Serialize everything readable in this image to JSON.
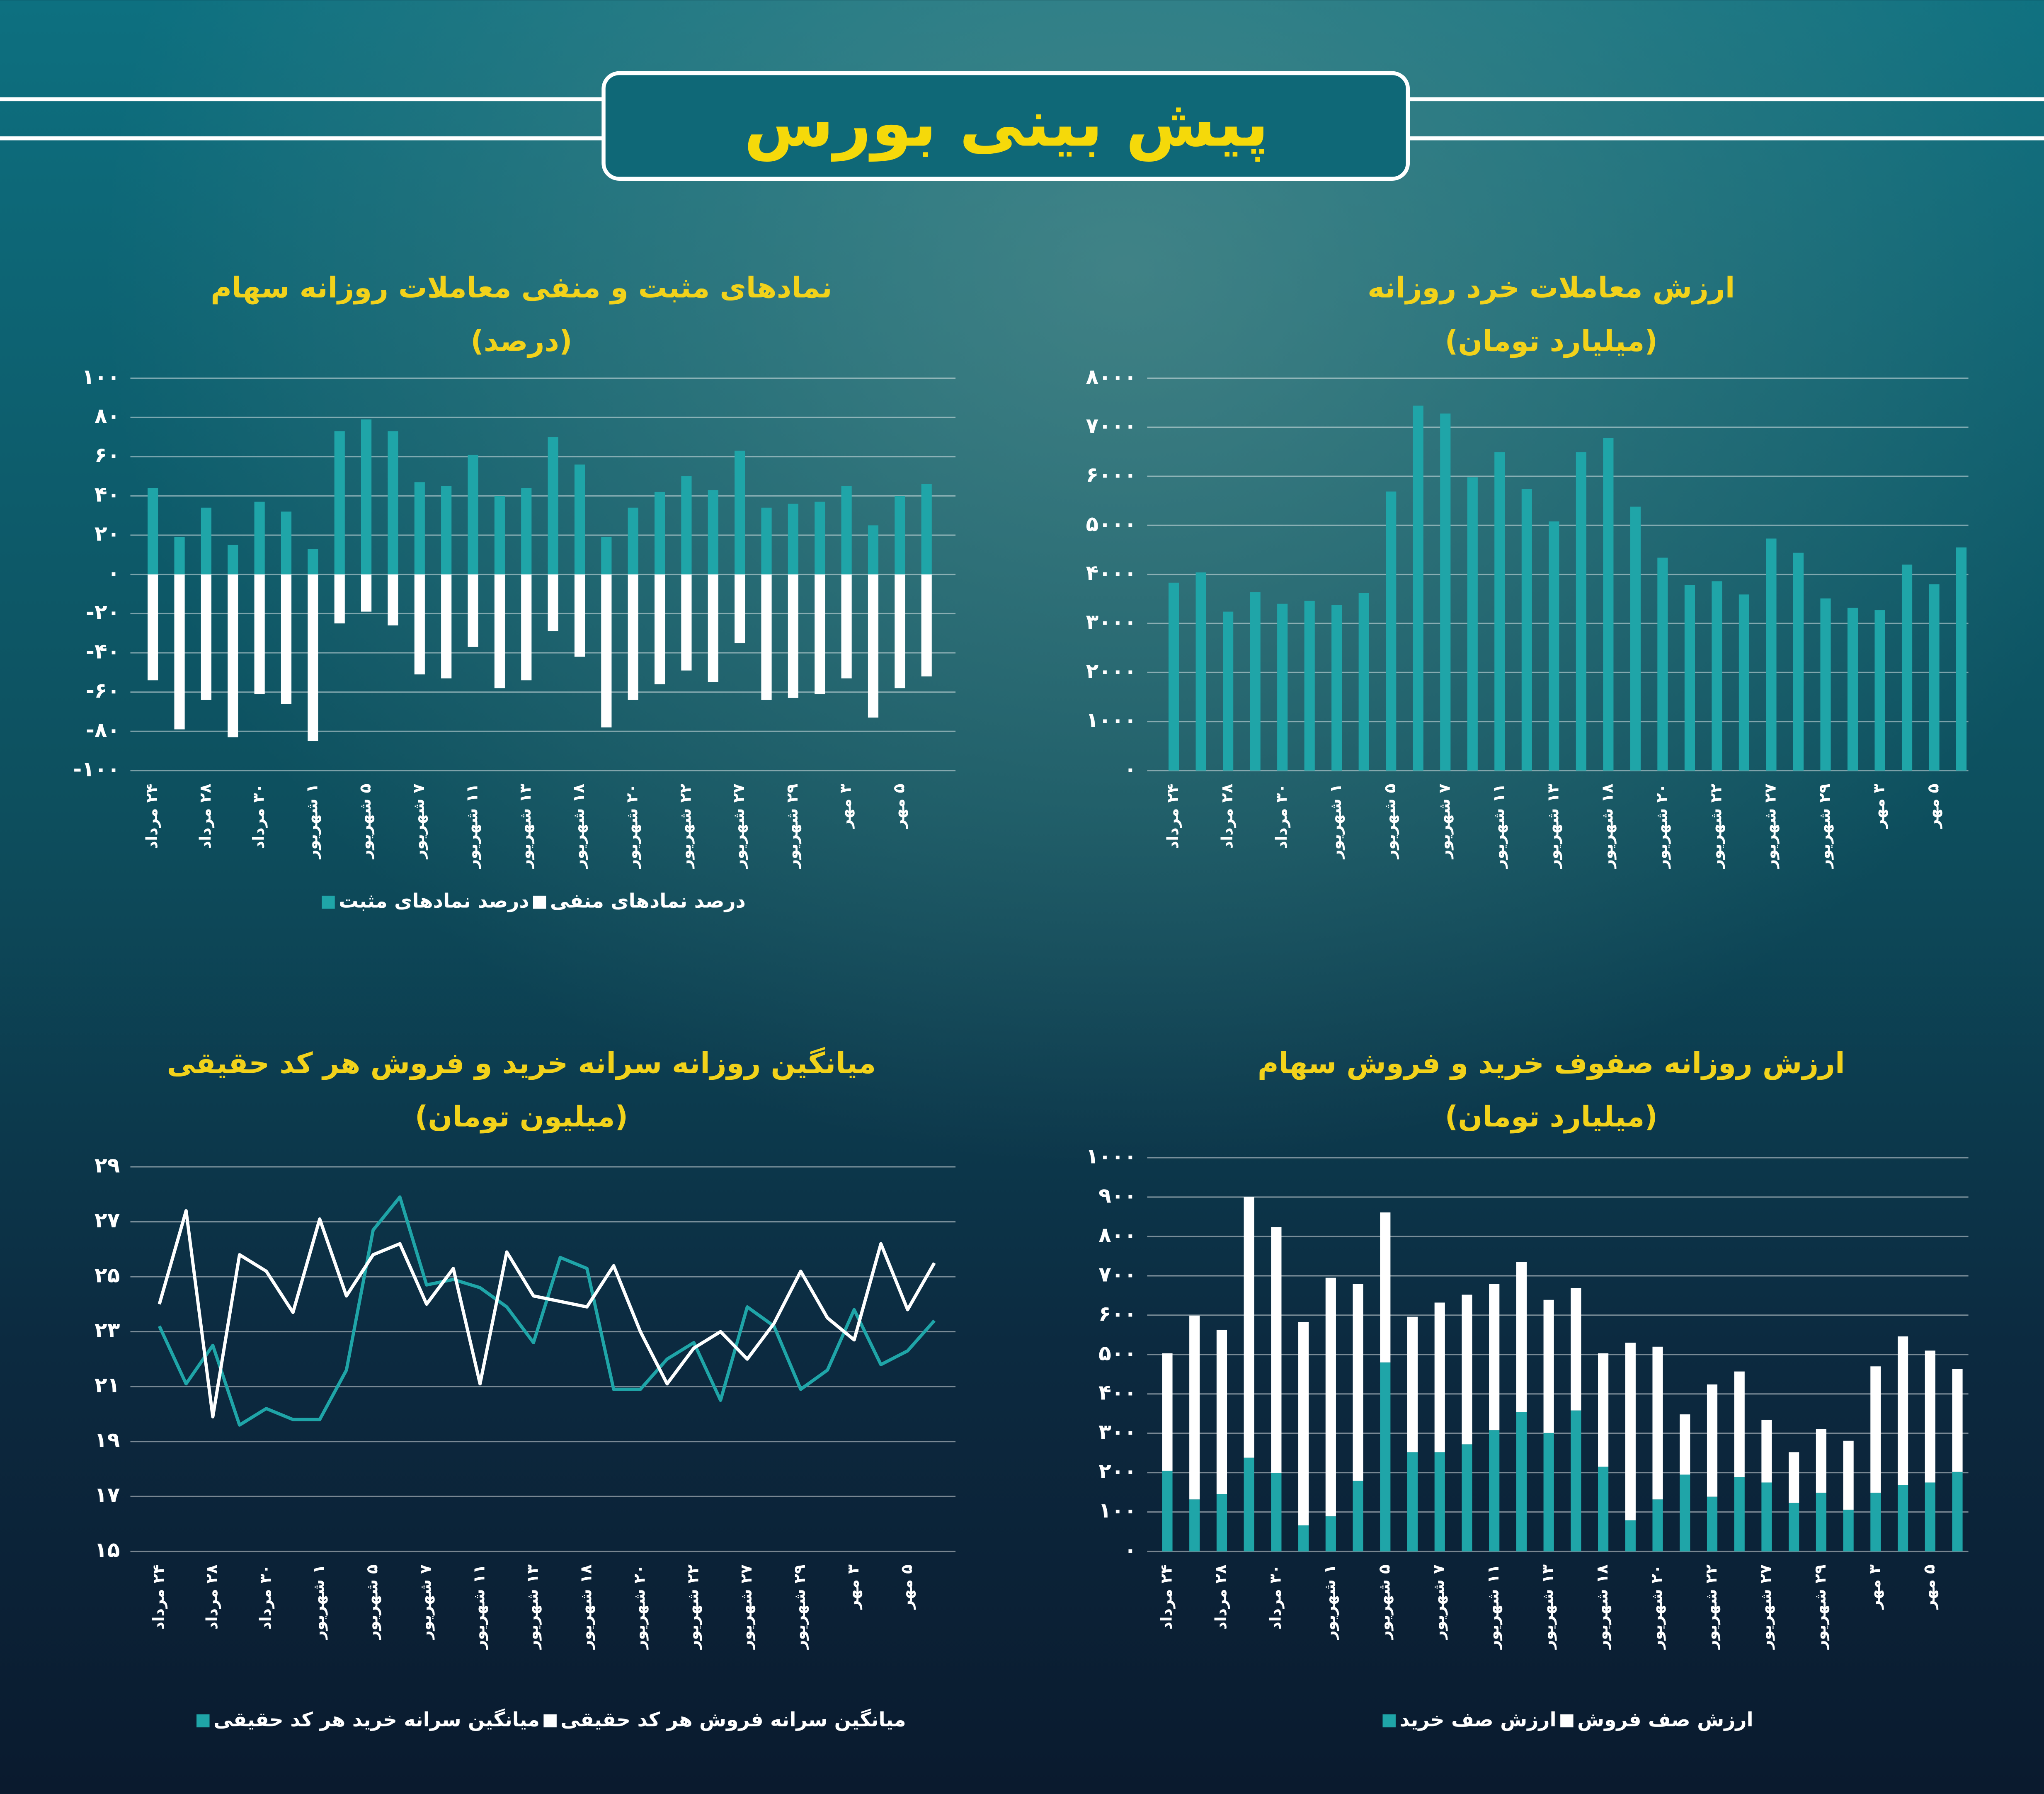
{
  "title": "پیش بینی بورس",
  "chart_data": [
    {
      "type": "bar",
      "title": "نمادهای مثبت و منفی معاملات روزانه سهام",
      "subtitle": "(درصد)",
      "categories": [
        "۲۴ مرداد",
        null,
        "۲۸ مرداد",
        null,
        "۳۰ مرداد",
        null,
        "۱ شهریور",
        null,
        "۵ شهریور",
        null,
        "۷ شهریور",
        null,
        "۱۱ شهریور",
        null,
        "۱۳ شهریور",
        null,
        "۱۸ شهریور",
        null,
        "۲۰ شهریور",
        null,
        "۲۲ شهریور",
        null,
        "۲۷ شهریور",
        null,
        "۲۹ شهریور",
        null,
        "۳ مهر",
        null,
        "۵ مهر",
        null
      ],
      "series": [
        {
          "name": "درصد نمادهای مثبت",
          "color": "#1fa5a8",
          "values": [
            44,
            19,
            34,
            15,
            37,
            32,
            13,
            73,
            79,
            73,
            47,
            45,
            61,
            40,
            44,
            70,
            56,
            19,
            34,
            42,
            50,
            43,
            63,
            34,
            36,
            37,
            45,
            25,
            40,
            46
          ]
        },
        {
          "name": "درصد نمادهای منفی",
          "color": "#ffffff",
          "values": [
            -54,
            -79,
            -64,
            -83,
            -61,
            -66,
            -85,
            -25,
            -19,
            -26,
            -51,
            -53,
            -37,
            -58,
            -54,
            -29,
            -42,
            -78,
            -64,
            -56,
            -49,
            -55,
            -35,
            -64,
            -63,
            -61,
            -53,
            -73,
            -58,
            -52
          ]
        }
      ],
      "ylim": [
        -100,
        100
      ],
      "yticks": [
        {
          "value": -100,
          "label": "-۱۰۰"
        },
        {
          "value": -80,
          "label": "-۸۰"
        },
        {
          "value": -60,
          "label": "-۶۰"
        },
        {
          "value": -40,
          "label": "-۴۰"
        },
        {
          "value": -20,
          "label": "-۲۰"
        },
        {
          "value": 0,
          "label": "۰"
        },
        {
          "value": 20,
          "label": "۲۰"
        },
        {
          "value": 40,
          "label": "۴۰"
        },
        {
          "value": 60,
          "label": "۶۰"
        },
        {
          "value": 80,
          "label": "۸۰"
        },
        {
          "value": 100,
          "label": "۱۰۰"
        }
      ],
      "grid": true
    },
    {
      "type": "bar",
      "title": "ارزش معاملات خرد روزانه",
      "subtitle": "(میلیارد تومان)",
      "categories": [
        "۲۴ مرداد",
        null,
        "۲۸ مرداد",
        null,
        "۳۰ مرداد",
        null,
        "۱ شهریور",
        null,
        "۵ شهریور",
        null,
        "۷ شهریور",
        null,
        "۱۱ شهریور",
        null,
        "۱۳ شهریور",
        null,
        "۱۸ شهریور",
        null,
        "۲۰ شهریور",
        null,
        "۲۲ شهریور",
        null,
        "۲۷ شهریور",
        null,
        "۲۹ شهریور",
        null,
        "۳ مهر",
        null,
        "۵ مهر",
        null
      ],
      "values": [
        3830,
        4040,
        3240,
        3640,
        3400,
        3460,
        3380,
        3620,
        5690,
        7440,
        7280,
        5980,
        6490,
        5740,
        5080,
        6490,
        6780,
        5380,
        4340,
        3780,
        3860,
        3590,
        4730,
        4440,
        3510,
        3320,
        3270,
        4200,
        3800,
        4550
      ],
      "color": "#1fa5a8",
      "ylim": [
        0,
        8000
      ],
      "yticks": [
        {
          "value": 0,
          "label": "۰"
        },
        {
          "value": 1000,
          "label": "۱۰۰۰"
        },
        {
          "value": 2000,
          "label": "۲۰۰۰"
        },
        {
          "value": 3000,
          "label": "۳۰۰۰"
        },
        {
          "value": 4000,
          "label": "۴۰۰۰"
        },
        {
          "value": 5000,
          "label": "۵۰۰۰"
        },
        {
          "value": 6000,
          "label": "۶۰۰۰"
        },
        {
          "value": 7000,
          "label": "۷۰۰۰"
        },
        {
          "value": 8000,
          "label": "۸۰۰۰"
        }
      ],
      "grid": true
    },
    {
      "type": "line",
      "title": "میانگین روزانه سرانه خرید و فروش هر کد حقیقی",
      "subtitle": "(میلیون تومان)",
      "categories": [
        "۲۴ مرداد",
        null,
        "۲۸ مرداد",
        null,
        "۳۰ مرداد",
        null,
        "۱ شهریور",
        null,
        "۵ شهریور",
        null,
        "۷ شهریور",
        null,
        "۱۱ شهریور",
        null,
        "۱۳ شهریور",
        null,
        "۱۸ شهریور",
        null,
        "۲۰ شهریور",
        null,
        "۲۲ شهریور",
        null,
        "۲۷ شهریور",
        null,
        "۲۹ شهریور",
        null,
        "۳ مهر",
        null,
        "۵ مهر",
        null
      ],
      "series": [
        {
          "name": "میانگین سرانه خرید هر کد حقیقی",
          "color": "#1fa5a8",
          "values": [
            23.2,
            21.1,
            22.5,
            19.6,
            20.2,
            19.8,
            19.8,
            21.6,
            26.7,
            27.9,
            24.7,
            24.9,
            24.6,
            23.9,
            22.6,
            25.7,
            25.3,
            20.9,
            20.9,
            22.0,
            22.6,
            20.5,
            23.9,
            23.2,
            20.9,
            21.6,
            23.8,
            21.8,
            22.3,
            23.4
          ]
        },
        {
          "name": "میانگین سرانه فروش هر کد حقیقی",
          "color": "#ffffff",
          "values": [
            24.0,
            27.4,
            19.9,
            25.8,
            25.2,
            23.7,
            27.1,
            24.3,
            25.8,
            26.2,
            24.0,
            25.3,
            21.1,
            25.9,
            24.3,
            24.1,
            23.9,
            25.4,
            23.0,
            21.1,
            22.4,
            23.0,
            22.0,
            23.3,
            25.2,
            23.5,
            22.7,
            26.2,
            23.8,
            25.5
          ]
        }
      ],
      "ylim": [
        15,
        29
      ],
      "yticks": [
        {
          "value": 15,
          "label": "۱۵"
        },
        {
          "value": 17,
          "label": "۱۷"
        },
        {
          "value": 19,
          "label": "۱۹"
        },
        {
          "value": 21,
          "label": "۲۱"
        },
        {
          "value": 23,
          "label": "۲۳"
        },
        {
          "value": 25,
          "label": "۲۵"
        },
        {
          "value": 27,
          "label": "۲۷"
        },
        {
          "value": 29,
          "label": "۲۹"
        }
      ],
      "grid": true
    },
    {
      "type": "stacked_bar",
      "title": "ارزش روزانه صفوف خرید و فروش سهام",
      "subtitle": "(میلیارد تومان)",
      "categories": [
        "۲۴ مرداد",
        null,
        "۲۸ مرداد",
        null,
        "۳۰ مرداد",
        null,
        "۱ شهریور",
        null,
        "۵ شهریور",
        null,
        "۷ شهریور",
        null,
        "۱۱ شهریور",
        null,
        "۱۳ شهریور",
        null,
        "۱۸ شهریور",
        null,
        "۲۰ شهریور",
        null,
        "۲۲ شهریور",
        null,
        "۲۷ شهریور",
        null,
        "۲۹ شهریور",
        null,
        "۳ مهر",
        null,
        "۵ مهر",
        null
      ],
      "series": [
        {
          "name": "ارزش صف خرید",
          "color": "#1fa5a8",
          "values": [
            205,
            132,
            146,
            238,
            199,
            66,
            89,
            179,
            480,
            252,
            252,
            272,
            308,
            354,
            301,
            358,
            215,
            79,
            132,
            195,
            139,
            189,
            175,
            123,
            149,
            106,
            149,
            169,
            175,
            202
          ]
        },
        {
          "name": "ارزش صف فروش",
          "color": "#ffffff",
          "values": [
            298,
            467,
            417,
            662,
            625,
            517,
            606,
            500,
            381,
            344,
            380,
            380,
            371,
            381,
            338,
            311,
            288,
            451,
            388,
            153,
            285,
            268,
            159,
            129,
            162,
            175,
            321,
            377,
            335,
            262
          ]
        }
      ],
      "ylim": [
        0,
        1000
      ],
      "yticks": [
        {
          "value": 0,
          "label": "۰"
        },
        {
          "value": 100,
          "label": "۱۰۰"
        },
        {
          "value": 200,
          "label": "۲۰۰"
        },
        {
          "value": 300,
          "label": "۳۰۰"
        },
        {
          "value": 400,
          "label": "۴۰۰"
        },
        {
          "value": 500,
          "label": "۵۰۰"
        },
        {
          "value": 600,
          "label": "۶۰۰"
        },
        {
          "value": 700,
          "label": "۷۰۰"
        },
        {
          "value": 800,
          "label": "۸۰۰"
        },
        {
          "value": 900,
          "label": "۹۰۰"
        },
        {
          "value": 1000,
          "label": "۱۰۰۰"
        }
      ],
      "grid": true
    }
  ]
}
